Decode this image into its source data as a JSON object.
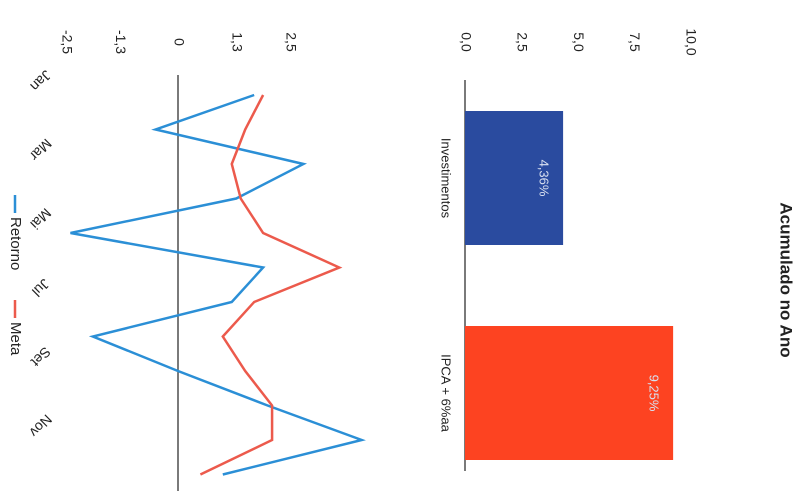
{
  "chart_data": [
    {
      "type": "bar",
      "title": "Acumulado no Ano",
      "categories": [
        "Investimentos",
        "IPCA + 6%aa"
      ],
      "values": [
        4.36,
        9.25
      ],
      "value_labels": [
        "4,36%",
        "9,25%"
      ],
      "colors": [
        "#2a4b9f",
        "#fd4321"
      ],
      "ylim": [
        0,
        10
      ],
      "yticks": [
        {
          "value": 0,
          "label": "0,0"
        },
        {
          "value": 2.5,
          "label": "2,5"
        },
        {
          "value": 5,
          "label": "5,0"
        },
        {
          "value": 7.5,
          "label": "7,5"
        },
        {
          "value": 10,
          "label": "10,0"
        }
      ]
    },
    {
      "type": "line",
      "categories": [
        "Jan",
        null,
        "Mar",
        null,
        "Mai",
        null,
        "Jul",
        null,
        "Set",
        null,
        "Nov",
        null
      ],
      "series": [
        {
          "name": "Retorno",
          "color": "#2b8fd6",
          "values": [
            1.7,
            -0.5,
            2.8,
            1.3,
            -2.4,
            1.9,
            1.2,
            -1.9,
            0.0,
            2.0,
            4.1,
            1.0
          ]
        },
        {
          "name": "Meta",
          "color": "#ec5a4c",
          "values": [
            1.9,
            1.5,
            1.2,
            1.4,
            1.9,
            3.6,
            1.7,
            1.0,
            1.5,
            2.1,
            2.1,
            0.5
          ]
        }
      ],
      "ylim": [
        -2.5,
        2.5
      ],
      "yticks": [
        {
          "value": -2.5,
          "label": "-2,5"
        },
        {
          "value": -1.3,
          "label": "-1,3"
        },
        0,
        {
          "value": 1.3,
          "label": "1,3"
        },
        {
          "value": 2.5,
          "label": "2,5"
        }
      ]
    }
  ]
}
